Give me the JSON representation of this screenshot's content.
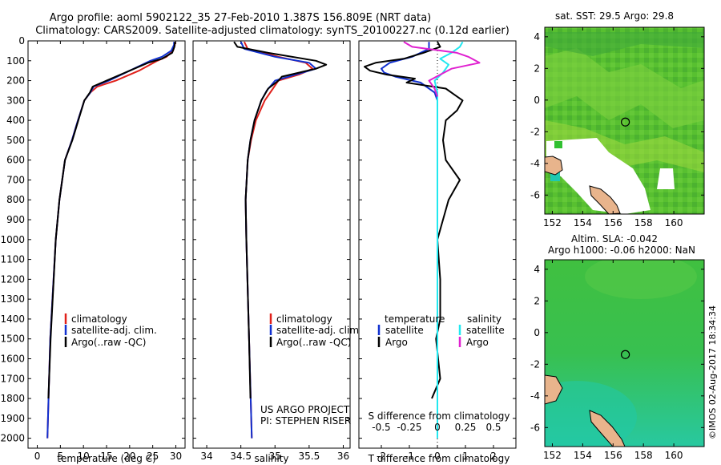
{
  "header": {
    "title_line1": "Argo profile: aoml 5902122_35 27-Feb-2010 1.387S 156.809E (NRT data)",
    "title_line2": "Climatology: CARS2009. Satellite-adjusted climatology: synTS_20100227.nc (0.12d earlier)"
  },
  "colors": {
    "climatology": "#e0201a",
    "satellite": "#1030d0",
    "argo": "#000000",
    "sat_salinity": "#22e8f0",
    "argo_salinity": "#e020d0",
    "land": "#e8b48c",
    "nodata": "#ffffff"
  },
  "chart_data": [
    {
      "id": "temperature",
      "type": "line",
      "xlabel": "temperature (deg C)",
      "ylabel": "",
      "xlim": [
        -2,
        32
      ],
      "ylim": [
        2050,
        0
      ],
      "xticks": [
        0,
        5,
        10,
        15,
        20,
        25,
        30
      ],
      "yticks": [
        0,
        100,
        200,
        300,
        400,
        500,
        600,
        700,
        800,
        900,
        1000,
        1100,
        1200,
        1300,
        1400,
        1500,
        1600,
        1700,
        1800,
        1900,
        2000
      ],
      "legend": [
        "climatology",
        "satellite-adj. clim.",
        "Argo(..raw -QC)"
      ],
      "series": [
        {
          "name": "climatology",
          "color": "#e0201a",
          "depth": [
            5,
            20,
            50,
            80,
            100,
            150,
            200,
            230,
            260,
            300,
            400,
            500,
            600,
            800,
            1000,
            1500,
            2000
          ],
          "values": [
            29.8,
            29.8,
            29.4,
            28,
            26,
            22,
            17,
            13,
            11.5,
            10.2,
            8.8,
            7.5,
            6,
            4.8,
            4,
            2.8,
            2.2
          ]
        },
        {
          "name": "satellite-adj. clim.",
          "color": "#1030d0",
          "depth": [
            5,
            20,
            50,
            80,
            100,
            150,
            200,
            230,
            260,
            300,
            400,
            500,
            600,
            800,
            1000,
            1500,
            2000
          ],
          "values": [
            29.6,
            29.6,
            29,
            27,
            24.5,
            20,
            15.5,
            12.2,
            11.5,
            10.2,
            8.8,
            7.5,
            6,
            4.8,
            4,
            2.8,
            2.2
          ]
        },
        {
          "name": "Argo(..raw -QC)",
          "color": "#000000",
          "depth": [
            5,
            30,
            60,
            90,
            110,
            150,
            200,
            230,
            260,
            300,
            400,
            500,
            600,
            800,
            1000,
            1500,
            1800
          ],
          "values": [
            29.8,
            29.7,
            29.2,
            27,
            24,
            20,
            15,
            12,
            11.4,
            10.2,
            8.9,
            7.6,
            6,
            4.8,
            4,
            2.9,
            2.4
          ]
        }
      ]
    },
    {
      "id": "salinity",
      "type": "line",
      "xlabel": "salinity",
      "ylabel": "",
      "xlim": [
        33.8,
        36.1
      ],
      "ylim": [
        2050,
        0
      ],
      "xticks": [
        34,
        34.5,
        35,
        35.5,
        36
      ],
      "legend": [
        "climatology",
        "satellite-adj. clim.",
        "Argo(..raw -QC)"
      ],
      "series": [
        {
          "name": "climatology",
          "color": "#e0201a",
          "depth": [
            5,
            40,
            80,
            110,
            140,
            170,
            200,
            250,
            300,
            400,
            500,
            600,
            800,
            1000,
            1500,
            2000
          ],
          "values": [
            34.55,
            34.6,
            35.05,
            35.45,
            35.55,
            35.35,
            35.05,
            34.95,
            34.85,
            34.72,
            34.65,
            34.6,
            34.57,
            34.58,
            34.62,
            34.66
          ]
        },
        {
          "name": "satellite-adj. clim.",
          "color": "#1030d0",
          "depth": [
            5,
            40,
            80,
            110,
            140,
            170,
            200,
            250,
            300,
            400,
            500,
            600,
            800,
            1000,
            1500,
            2000
          ],
          "values": [
            34.5,
            34.55,
            35.0,
            35.5,
            35.6,
            35.3,
            35.0,
            34.88,
            34.8,
            34.7,
            34.64,
            34.6,
            34.57,
            34.58,
            34.62,
            34.66
          ]
        },
        {
          "name": "Argo(..raw -QC)",
          "color": "#000000",
          "depth": [
            5,
            30,
            60,
            100,
            120,
            140,
            180,
            200,
            240,
            300,
            400,
            500,
            600,
            800,
            1000,
            1500,
            1800
          ],
          "values": [
            34.4,
            34.45,
            34.9,
            35.6,
            35.75,
            35.6,
            35.1,
            35.05,
            34.9,
            34.8,
            34.7,
            34.64,
            34.6,
            34.57,
            34.58,
            34.62,
            34.64
          ]
        }
      ]
    },
    {
      "id": "difference",
      "type": "line",
      "xlabel": "T difference from climatology",
      "xlabel_top": "S difference from climatology",
      "xlim": [
        -2.8,
        2.8
      ],
      "ylim": [
        2050,
        0
      ],
      "xticks": [
        -2,
        -1,
        0,
        1,
        2
      ],
      "xticks_top": [
        "-0.5",
        "-0.25",
        "0",
        "0.25",
        "0.5"
      ],
      "xticks_top_pos": [
        -2,
        -1,
        0,
        1,
        2
      ],
      "legend_titles": [
        "temperature",
        "salinity"
      ],
      "legend": [
        "satellite",
        "Argo",
        "satellite",
        "Argo"
      ],
      "series": [
        {
          "name": "T satellite",
          "color": "#1030d0",
          "depth": [
            5,
            40,
            80,
            110,
            140,
            160,
            180,
            210,
            260,
            300,
            400,
            500,
            600,
            800,
            1000,
            1500,
            2000
          ],
          "values": [
            -0.3,
            -0.3,
            -0.9,
            -1.7,
            -2.0,
            -1.9,
            -1.5,
            -0.6,
            -0.1,
            0,
            0,
            0,
            0,
            0,
            0,
            0,
            0
          ]
        },
        {
          "name": "T Argo",
          "color": "#000000",
          "depth": [
            5,
            30,
            60,
            90,
            110,
            130,
            150,
            170,
            190,
            210,
            240,
            270,
            300,
            350,
            400,
            500,
            600,
            700,
            800,
            900,
            1000,
            1200,
            1400,
            1500,
            1700,
            1800
          ],
          "values": [
            0,
            0.1,
            -0.5,
            -1.2,
            -2.2,
            -2.6,
            -2.4,
            -1.8,
            -0.8,
            -1.1,
            0.3,
            0.6,
            0.9,
            0.7,
            0.3,
            0.2,
            0.3,
            0.8,
            0.4,
            0.2,
            0,
            0.1,
            0.1,
            -0.05,
            0.1,
            -0.2
          ]
        },
        {
          "name": "S satellite",
          "color": "#22e8f0",
          "depth": [
            5,
            30,
            60,
            90,
            120,
            160,
            200,
            260,
            300,
            400,
            600,
            1000,
            2000
          ],
          "values": [
            0.9,
            0.8,
            0.5,
            0.1,
            0.4,
            0.2,
            -0.1,
            0,
            0,
            0,
            0,
            0,
            0
          ]
        },
        {
          "name": "S Argo",
          "color": "#e020d0",
          "depth": [
            5,
            30,
            60,
            80,
            110,
            140,
            170,
            200,
            240,
            280
          ],
          "values": [
            -1.2,
            -0.9,
            0.7,
            1.1,
            1.5,
            0.5,
            0.1,
            -0.3,
            -0.1,
            0
          ]
        }
      ]
    }
  ],
  "maps": {
    "sst_title": "sat. SST: 29.5 Argo: 29.8",
    "sla_title_line1": "Altim. SLA: -0.042",
    "sla_title_line2": "Argo h1000: -0.06 h2000: NaN",
    "xticks": [
      "152",
      "154",
      "156",
      "158",
      "160"
    ],
    "yticks": [
      "4",
      "2",
      "0",
      "-2",
      "-4",
      "-6"
    ],
    "float_position": {
      "lon": 156.809,
      "lat": -1.387
    },
    "lon_range": [
      151.5,
      162.0
    ],
    "lat_range": [
      -7.2,
      4.6
    ]
  },
  "footer": {
    "project": "US ARGO PROJECT",
    "pi": "PI: STEPHEN RISER",
    "stamp": "©IMOS 02-Aug-2017 18:34:34"
  }
}
